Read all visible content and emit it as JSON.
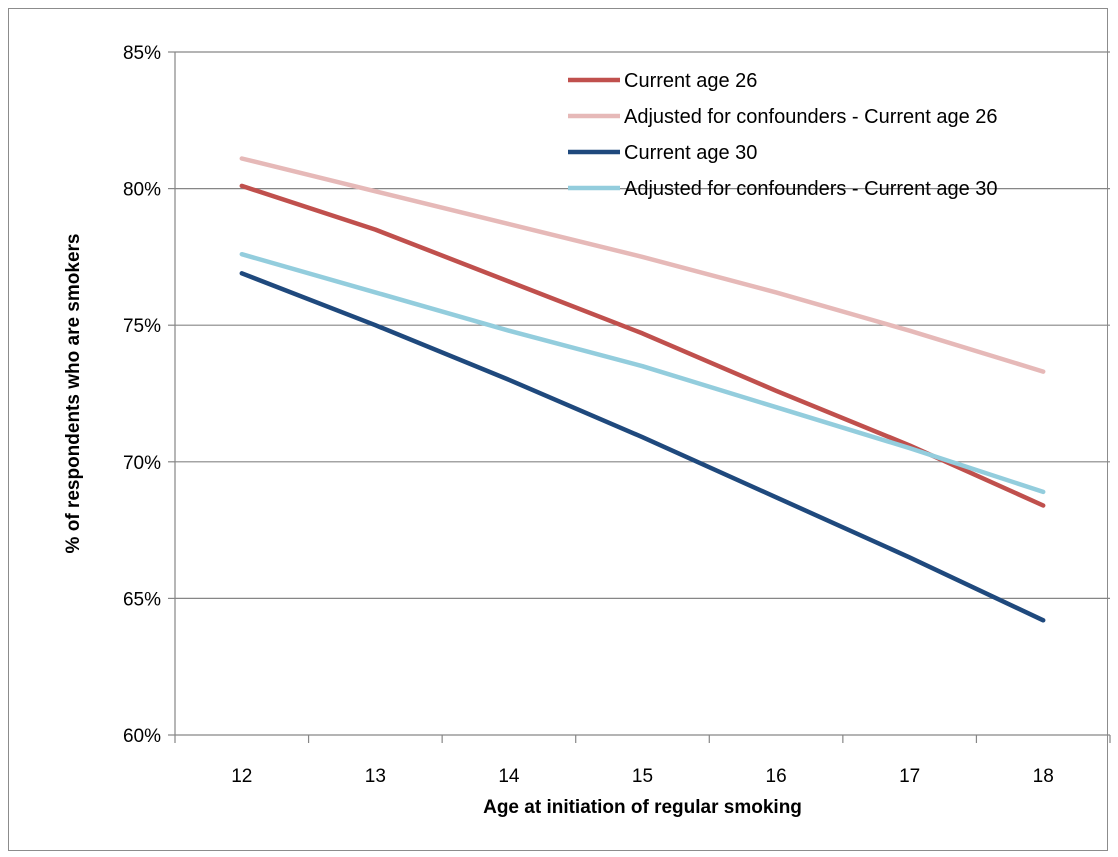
{
  "chart_data": {
    "type": "line",
    "title": "",
    "xlabel": "Age at initiation of regular smoking",
    "ylabel": "% of respondents who are smokers",
    "x": [
      12,
      13,
      14,
      15,
      16,
      17,
      18
    ],
    "x_tick_labels": [
      "12",
      "13",
      "14",
      "15",
      "16",
      "17",
      "18"
    ],
    "ylim": [
      60,
      85
    ],
    "y_ticks": [
      60,
      65,
      70,
      75,
      80,
      85
    ],
    "y_tick_labels": [
      "60%",
      "65%",
      "70%",
      "75%",
      "80%",
      "85%"
    ],
    "grid": true,
    "legend_position": "top-right",
    "series": [
      {
        "name": "Current age 26",
        "color": "#c0504d",
        "values": [
          80.1,
          78.5,
          76.6,
          74.7,
          72.6,
          70.6,
          68.4
        ]
      },
      {
        "name": "Adjusted for confounders - Current age 26",
        "color": "#e6b9b8",
        "values": [
          81.1,
          79.9,
          78.7,
          77.5,
          76.2,
          74.8,
          73.3
        ]
      },
      {
        "name": "Current age 30",
        "color": "#1f497d",
        "values": [
          76.9,
          75.0,
          73.0,
          70.9,
          68.7,
          66.5,
          64.2
        ]
      },
      {
        "name": "Adjusted for confounders - Current age 30",
        "color": "#93cddd",
        "values": [
          77.6,
          76.2,
          74.8,
          73.5,
          72.0,
          70.5,
          68.9
        ]
      }
    ]
  }
}
